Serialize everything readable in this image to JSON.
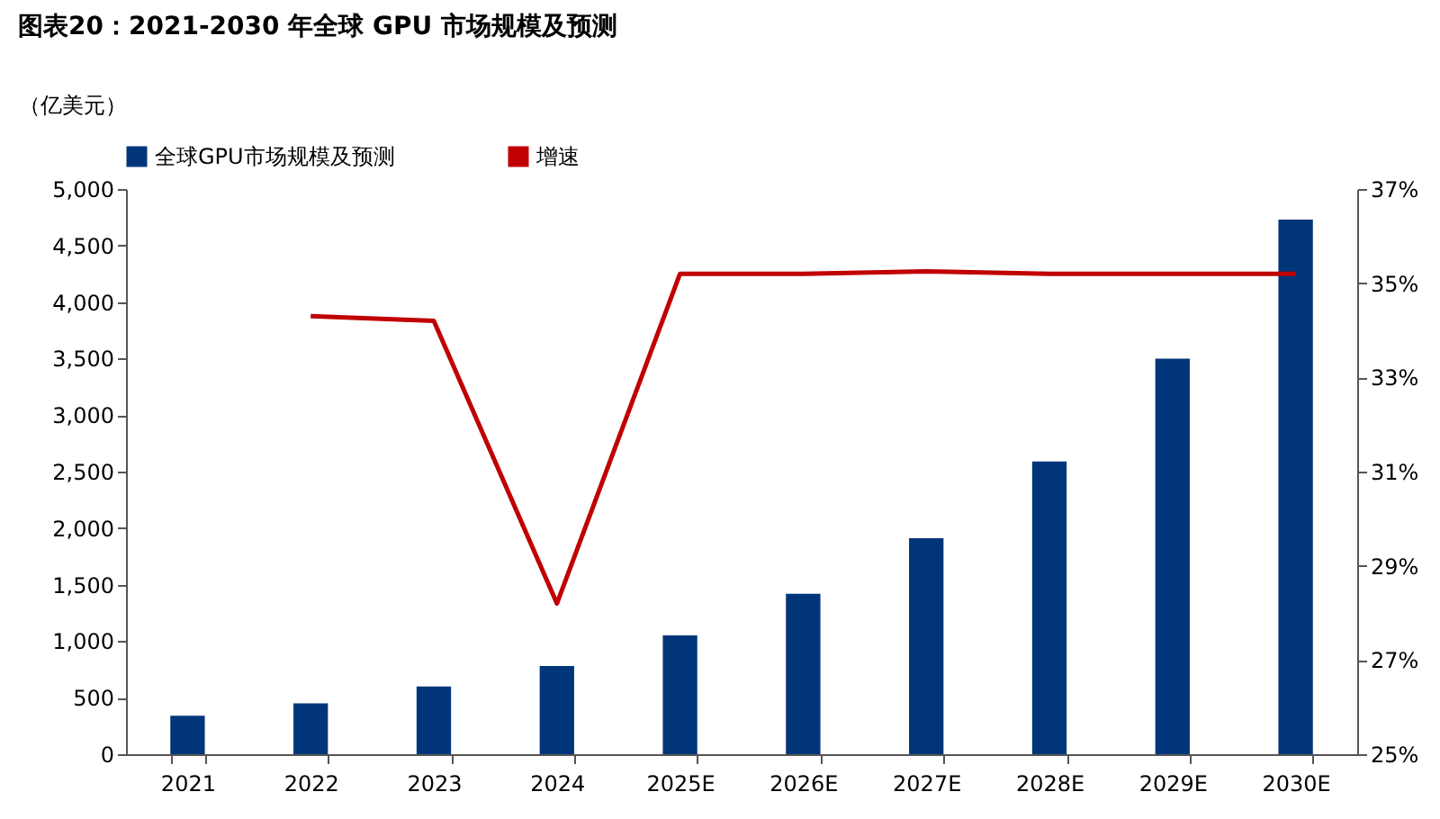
{
  "chart_data": {
    "type": "bar",
    "title": "图表20：2021-2030 年全球 GPU 市场规模及预测",
    "ylabel": "（亿美元）",
    "categories": [
      "2021",
      "2022",
      "2023",
      "2024",
      "2025E",
      "2026E",
      "2027E",
      "2028E",
      "2029E",
      "2030E"
    ],
    "series": [
      {
        "name": "全球GPU市场规模及预测",
        "color": "#003679",
        "values": [
          340,
          450,
          600,
          780,
          1050,
          1420,
          1910,
          2590,
          3500,
          4730
        ]
      },
      {
        "name": "增速",
        "type": "line",
        "axis": "y2",
        "color": "#c00000",
        "values": [
          null,
          34.3,
          34.2,
          28.2,
          35.2,
          35.2,
          35.25,
          35.2,
          35.2,
          35.2
        ]
      }
    ],
    "ylim": [
      0,
      5000
    ],
    "yticks": [
      0,
      {
        "value": 500,
        "label": "500"
      },
      {
        "value": 1000,
        "label": "1,000"
      },
      {
        "value": 1500,
        "label": "1,500"
      },
      {
        "value": 2000,
        "label": "2,000"
      },
      {
        "value": 2500,
        "label": "2,500"
      },
      {
        "value": 3000,
        "label": "3,000"
      },
      {
        "value": 3500,
        "label": "3,500"
      },
      {
        "value": 4000,
        "label": "4,000"
      },
      {
        "value": 4500,
        "label": "4,500"
      },
      {
        "value": 5000,
        "label": "5,000"
      }
    ],
    "y2lim": [
      25,
      37
    ],
    "y2ticks": [
      {
        "value": 25,
        "label": "25%"
      },
      {
        "value": 27,
        "label": "27%"
      },
      {
        "value": 29,
        "label": "29%"
      },
      {
        "value": 31,
        "label": "31%"
      },
      {
        "value": 33,
        "label": "33%"
      },
      {
        "value": 35,
        "label": "35%"
      },
      {
        "value": 37,
        "label": "37%"
      }
    ],
    "grid": false,
    "legend": "top",
    "marker": "none",
    "line_style": "solid"
  }
}
